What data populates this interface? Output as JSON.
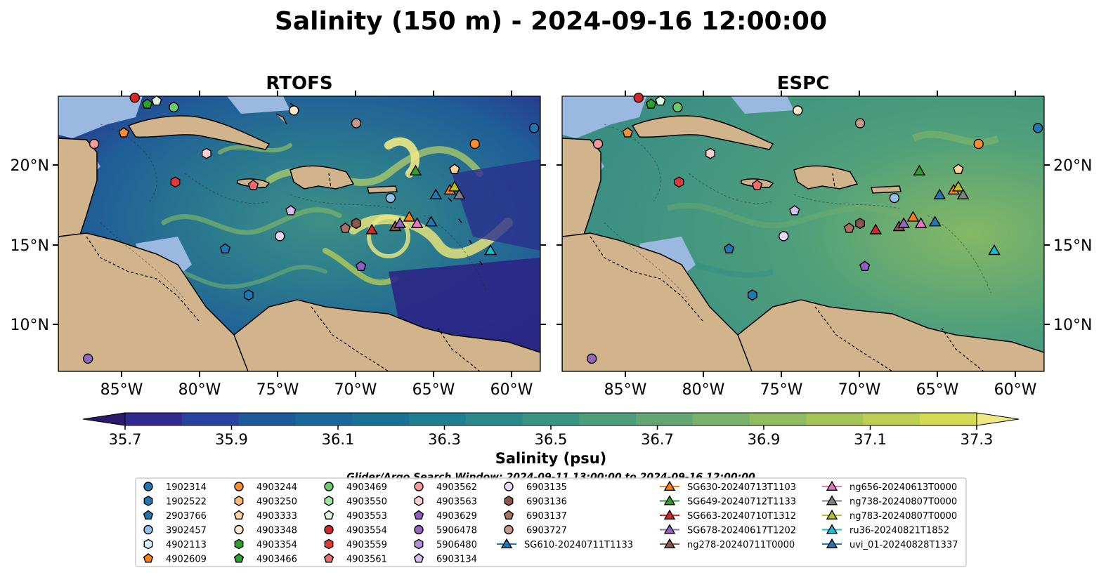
{
  "title": "Salinity (150 m) - 2024-09-16 12:00:00",
  "panels": [
    {
      "title": "RTOFS"
    },
    {
      "title": "ESPC"
    }
  ],
  "axes": {
    "x_ticks": [
      "85°W",
      "80°W",
      "75°W",
      "70°W",
      "65°W",
      "60°W"
    ],
    "y_ticks": [
      "20°N",
      "15°N",
      "10°N"
    ]
  },
  "colorbar": {
    "label": "Salinity (psu)",
    "tick_labels": [
      "35.7",
      "35.9",
      "36.1",
      "36.3",
      "36.5",
      "36.7",
      "36.9",
      "37.1",
      "37.3"
    ],
    "colors": [
      "#2b1a6b",
      "#302a8f",
      "#27449e",
      "#1d5a9c",
      "#19689a",
      "#197396",
      "#1e7f91",
      "#2a8a8b",
      "#3a9484",
      "#4e9e7c",
      "#63a873",
      "#79b26a",
      "#8fbc60",
      "#a6c558",
      "#bdcf52",
      "#d5da55",
      "#eee882"
    ]
  },
  "legend": {
    "search_window": "Glider/Argo Search Window: 2024-09-11 13:00:00 to 2024-09-16 12:00:00",
    "argo": [
      {
        "id": "1902314",
        "color": "#1f77b4",
        "shape": "circle"
      },
      {
        "id": "1902522",
        "color": "#1f77b4",
        "shape": "hexagon"
      },
      {
        "id": "2903766",
        "color": "#1f77b4",
        "shape": "pentagon"
      },
      {
        "id": "3902457",
        "color": "#8fc4ea",
        "shape": "circle"
      },
      {
        "id": "4902113",
        "color": "#d6ecf9",
        "shape": "hexagon"
      },
      {
        "id": "4902609",
        "color": "#ff7f0e",
        "shape": "pentagon"
      },
      {
        "id": "4903244",
        "color": "#ff8c2e",
        "shape": "circle"
      },
      {
        "id": "4903250",
        "color": "#ffbb78",
        "shape": "hexagon"
      },
      {
        "id": "4903333",
        "color": "#ffd49e",
        "shape": "pentagon"
      },
      {
        "id": "4903348",
        "color": "#ffe9cc",
        "shape": "circle"
      },
      {
        "id": "4903354",
        "color": "#2ca02c",
        "shape": "hexagon"
      },
      {
        "id": "4903466",
        "color": "#2ca02c",
        "shape": "pentagon"
      },
      {
        "id": "4903469",
        "color": "#6dcb6d",
        "shape": "circle"
      },
      {
        "id": "4903550",
        "color": "#a6e4a6",
        "shape": "hexagon"
      },
      {
        "id": "4903553",
        "color": "#ddf6dd",
        "shape": "pentagon"
      },
      {
        "id": "4903554",
        "color": "#d62728",
        "shape": "circle"
      },
      {
        "id": "4903559",
        "color": "#e0393a",
        "shape": "hexagon"
      },
      {
        "id": "4903561",
        "color": "#ee6b6b",
        "shape": "pentagon"
      },
      {
        "id": "4903562",
        "color": "#f59a9a",
        "shape": "circle"
      },
      {
        "id": "4903563",
        "color": "#fbd0d0",
        "shape": "hexagon"
      },
      {
        "id": "4903629",
        "color": "#8d5fc2",
        "shape": "pentagon"
      },
      {
        "id": "5906478",
        "color": "#9467bd",
        "shape": "circle"
      },
      {
        "id": "5906480",
        "color": "#b490d6",
        "shape": "hexagon"
      },
      {
        "id": "6903134",
        "color": "#d6bdf0",
        "shape": "pentagon"
      },
      {
        "id": "6903135",
        "color": "#e9d6fa",
        "shape": "circle"
      },
      {
        "id": "6903136",
        "color": "#8c564b",
        "shape": "hexagon"
      },
      {
        "id": "6903137",
        "color": "#a87266",
        "shape": "pentagon"
      },
      {
        "id": "6903727",
        "color": "#c49a8f",
        "shape": "circle"
      }
    ],
    "gliders": [
      {
        "id": "SG610-20240711T1133",
        "color": "#1f77b4"
      },
      {
        "id": "SG630-20240713T1103",
        "color": "#ff7f0e"
      },
      {
        "id": "SG649-20240712T1133",
        "color": "#2ca02c"
      },
      {
        "id": "SG663-20240710T1312",
        "color": "#d62728"
      },
      {
        "id": "SG678-20240617T1202",
        "color": "#9467bd"
      },
      {
        "id": "ng278-20240711T0000",
        "color": "#8c564b"
      },
      {
        "id": "ng656-20240613T0000",
        "color": "#e377c2"
      },
      {
        "id": "ng738-20240807T0000",
        "color": "#7f7f7f"
      },
      {
        "id": "ng783-20240807T0000",
        "color": "#bcbd22"
      },
      {
        "id": "ru36-20240821T1852",
        "color": "#17becf"
      },
      {
        "id": "uvi_01-20240828T1337",
        "color": "#1f77b4"
      }
    ]
  },
  "map_markers": [
    {
      "lon": -84.1,
      "lat": 24.2,
      "color": "#d62728",
      "shape": "circle"
    },
    {
      "lon": -83.3,
      "lat": 23.8,
      "color": "#2ca02c",
      "shape": "pentagon"
    },
    {
      "lon": -82.7,
      "lat": 24.0,
      "color": "#ddf6dd",
      "shape": "pentagon"
    },
    {
      "lon": -81.6,
      "lat": 23.6,
      "color": "#6dcb6d",
      "shape": "circle"
    },
    {
      "lon": -73.9,
      "lat": 23.4,
      "color": "#ffe9cc",
      "shape": "circle"
    },
    {
      "lon": -69.9,
      "lat": 22.6,
      "color": "#c49a8f",
      "shape": "circle"
    },
    {
      "lon": -58.5,
      "lat": 22.3,
      "color": "#1f77b4",
      "shape": "circle"
    },
    {
      "lon": -84.8,
      "lat": 22.0,
      "color": "#ff8c2e",
      "shape": "pentagon"
    },
    {
      "lon": -86.7,
      "lat": 21.3,
      "color": "#f59a9a",
      "shape": "circle"
    },
    {
      "lon": -62.3,
      "lat": 21.3,
      "color": "#ff8c2e",
      "shape": "circle"
    },
    {
      "lon": -79.5,
      "lat": 20.7,
      "color": "#fbd0d0",
      "shape": "hexagon"
    },
    {
      "lon": -63.6,
      "lat": 19.7,
      "color": "#ffd49e",
      "shape": "pentagon"
    },
    {
      "lon": -81.5,
      "lat": 18.9,
      "color": "#e0393a",
      "shape": "hexagon"
    },
    {
      "lon": -76.5,
      "lat": 18.7,
      "color": "#ee6b6b",
      "shape": "pentagon"
    },
    {
      "lon": -67.7,
      "lat": 17.9,
      "color": "#8fc4ea",
      "shape": "circle"
    },
    {
      "lon": -74.1,
      "lat": 17.1,
      "color": "#d6bdf0",
      "shape": "pentagon"
    },
    {
      "lon": -69.9,
      "lat": 16.3,
      "color": "#8c564b",
      "shape": "hexagon"
    },
    {
      "lon": -70.6,
      "lat": 16.0,
      "color": "#a87266",
      "shape": "pentagon"
    },
    {
      "lon": -74.8,
      "lat": 15.5,
      "color": "#e9d6fa",
      "shape": "circle"
    },
    {
      "lon": -78.3,
      "lat": 14.7,
      "color": "#1f77b4",
      "shape": "pentagon"
    },
    {
      "lon": -69.6,
      "lat": 13.6,
      "color": "#8d5fc2",
      "shape": "pentagon"
    },
    {
      "lon": -76.8,
      "lat": 11.8,
      "color": "#1f77b4",
      "shape": "hexagon"
    },
    {
      "lon": -87.1,
      "lat": 7.8,
      "color": "#9467bd",
      "shape": "circle"
    },
    {
      "lon": -66.1,
      "lat": 19.6,
      "color": "#2ca02c",
      "shape": "triangle"
    },
    {
      "lon": -63.9,
      "lat": 18.4,
      "color": "#ff7f0e",
      "shape": "triangle"
    },
    {
      "lon": -63.6,
      "lat": 18.6,
      "color": "#bcbd22",
      "shape": "triangle"
    },
    {
      "lon": -63.3,
      "lat": 18.1,
      "color": "#7f7f7f",
      "shape": "triangle"
    },
    {
      "lon": -64.8,
      "lat": 18.1,
      "color": "#1f77b4",
      "shape": "triangle"
    },
    {
      "lon": -68.9,
      "lat": 15.9,
      "color": "#d62728",
      "shape": "triangle"
    },
    {
      "lon": -67.4,
      "lat": 16.1,
      "color": "#8c564b",
      "shape": "triangle"
    },
    {
      "lon": -67.1,
      "lat": 16.3,
      "color": "#9467bd",
      "shape": "triangle"
    },
    {
      "lon": -66.5,
      "lat": 16.7,
      "color": "#ff7f0e",
      "shape": "triangle"
    },
    {
      "lon": -66.0,
      "lat": 16.3,
      "color": "#e377c2",
      "shape": "triangle"
    },
    {
      "lon": -65.1,
      "lat": 16.4,
      "color": "#1f77b4",
      "shape": "triangle"
    },
    {
      "lon": -61.3,
      "lat": 14.6,
      "color": "#17becf",
      "shape": "triangle"
    }
  ],
  "style": {
    "land": "#d2b48c",
    "shelf": "#9bb8e0",
    "rtofs_ocean": "#1f5e96",
    "espc_ocean": "#3f9a7a"
  }
}
